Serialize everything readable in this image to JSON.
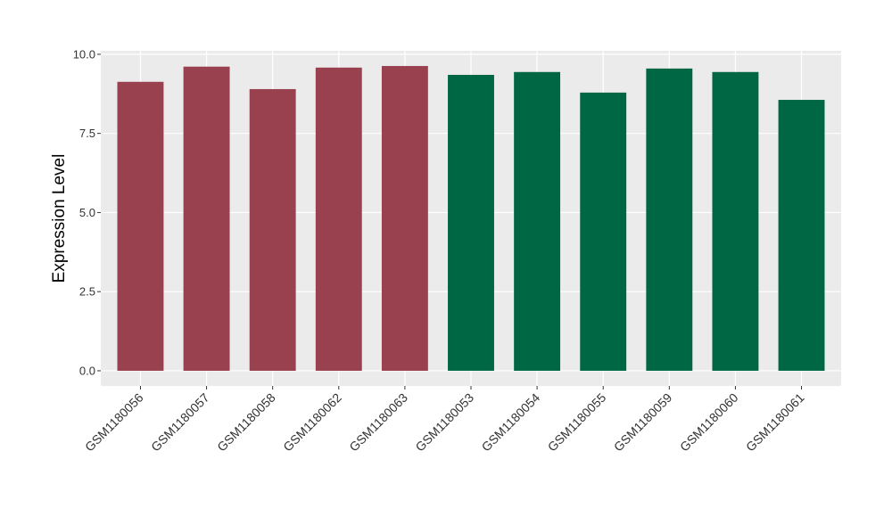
{
  "chart_data": {
    "type": "bar",
    "y_label": "Expression Level",
    "categories": [
      "GSM1180056",
      "GSM1180057",
      "GSM1180058",
      "GSM1180062",
      "GSM1180063",
      "GSM1180053",
      "GSM1180054",
      "GSM1180055",
      "GSM1180059",
      "GSM1180060",
      "GSM1180061"
    ],
    "values": [
      9.13,
      9.61,
      8.9,
      9.58,
      9.63,
      9.35,
      9.44,
      8.79,
      9.55,
      9.44,
      8.56
    ],
    "colors": [
      "#99414f",
      "#99414f",
      "#99414f",
      "#99414f",
      "#99414f",
      "#006745",
      "#006745",
      "#006745",
      "#006745",
      "#006745",
      "#006745"
    ],
    "ylim": [
      -0.48,
      10.11
    ],
    "yticks": [
      {
        "value": 0,
        "label": "0.0"
      },
      {
        "value": 2.5,
        "label": "2.5"
      },
      {
        "value": 5,
        "label": "5.0"
      },
      {
        "value": 7.5,
        "label": "7.5"
      },
      {
        "value": 10,
        "label": "10.0"
      }
    ],
    "grid": true
  }
}
